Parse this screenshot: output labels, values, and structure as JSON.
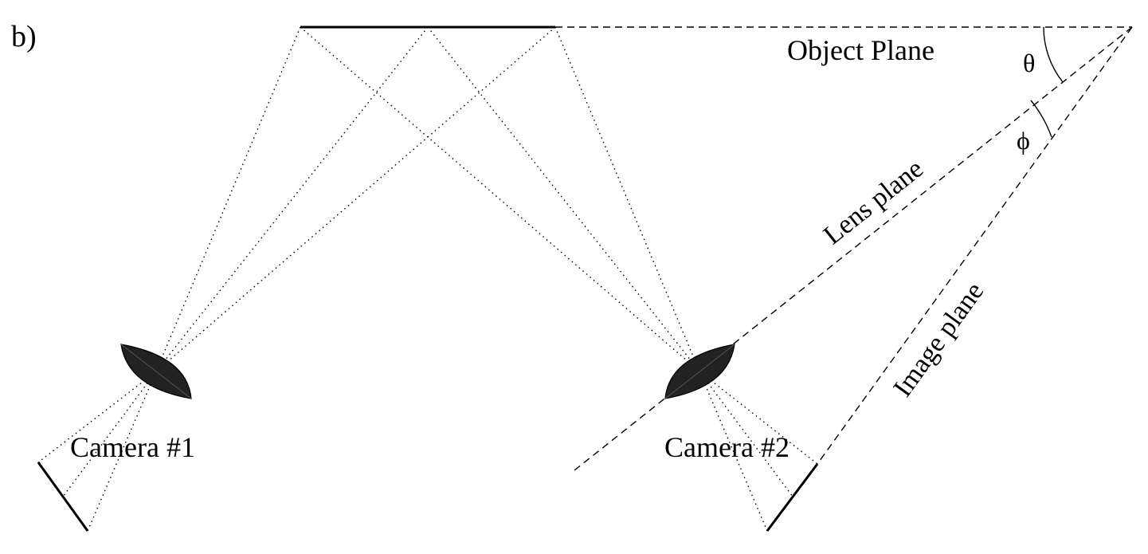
{
  "figure": {
    "panel_label": "b)",
    "labels": {
      "object_plane": "Object Plane",
      "lens_plane": "Lens plane",
      "image_plane": "Image plane",
      "theta": "θ",
      "phi": "ϕ",
      "camera_1": "Camera #1",
      "camera_2": "Camera #2"
    }
  }
}
